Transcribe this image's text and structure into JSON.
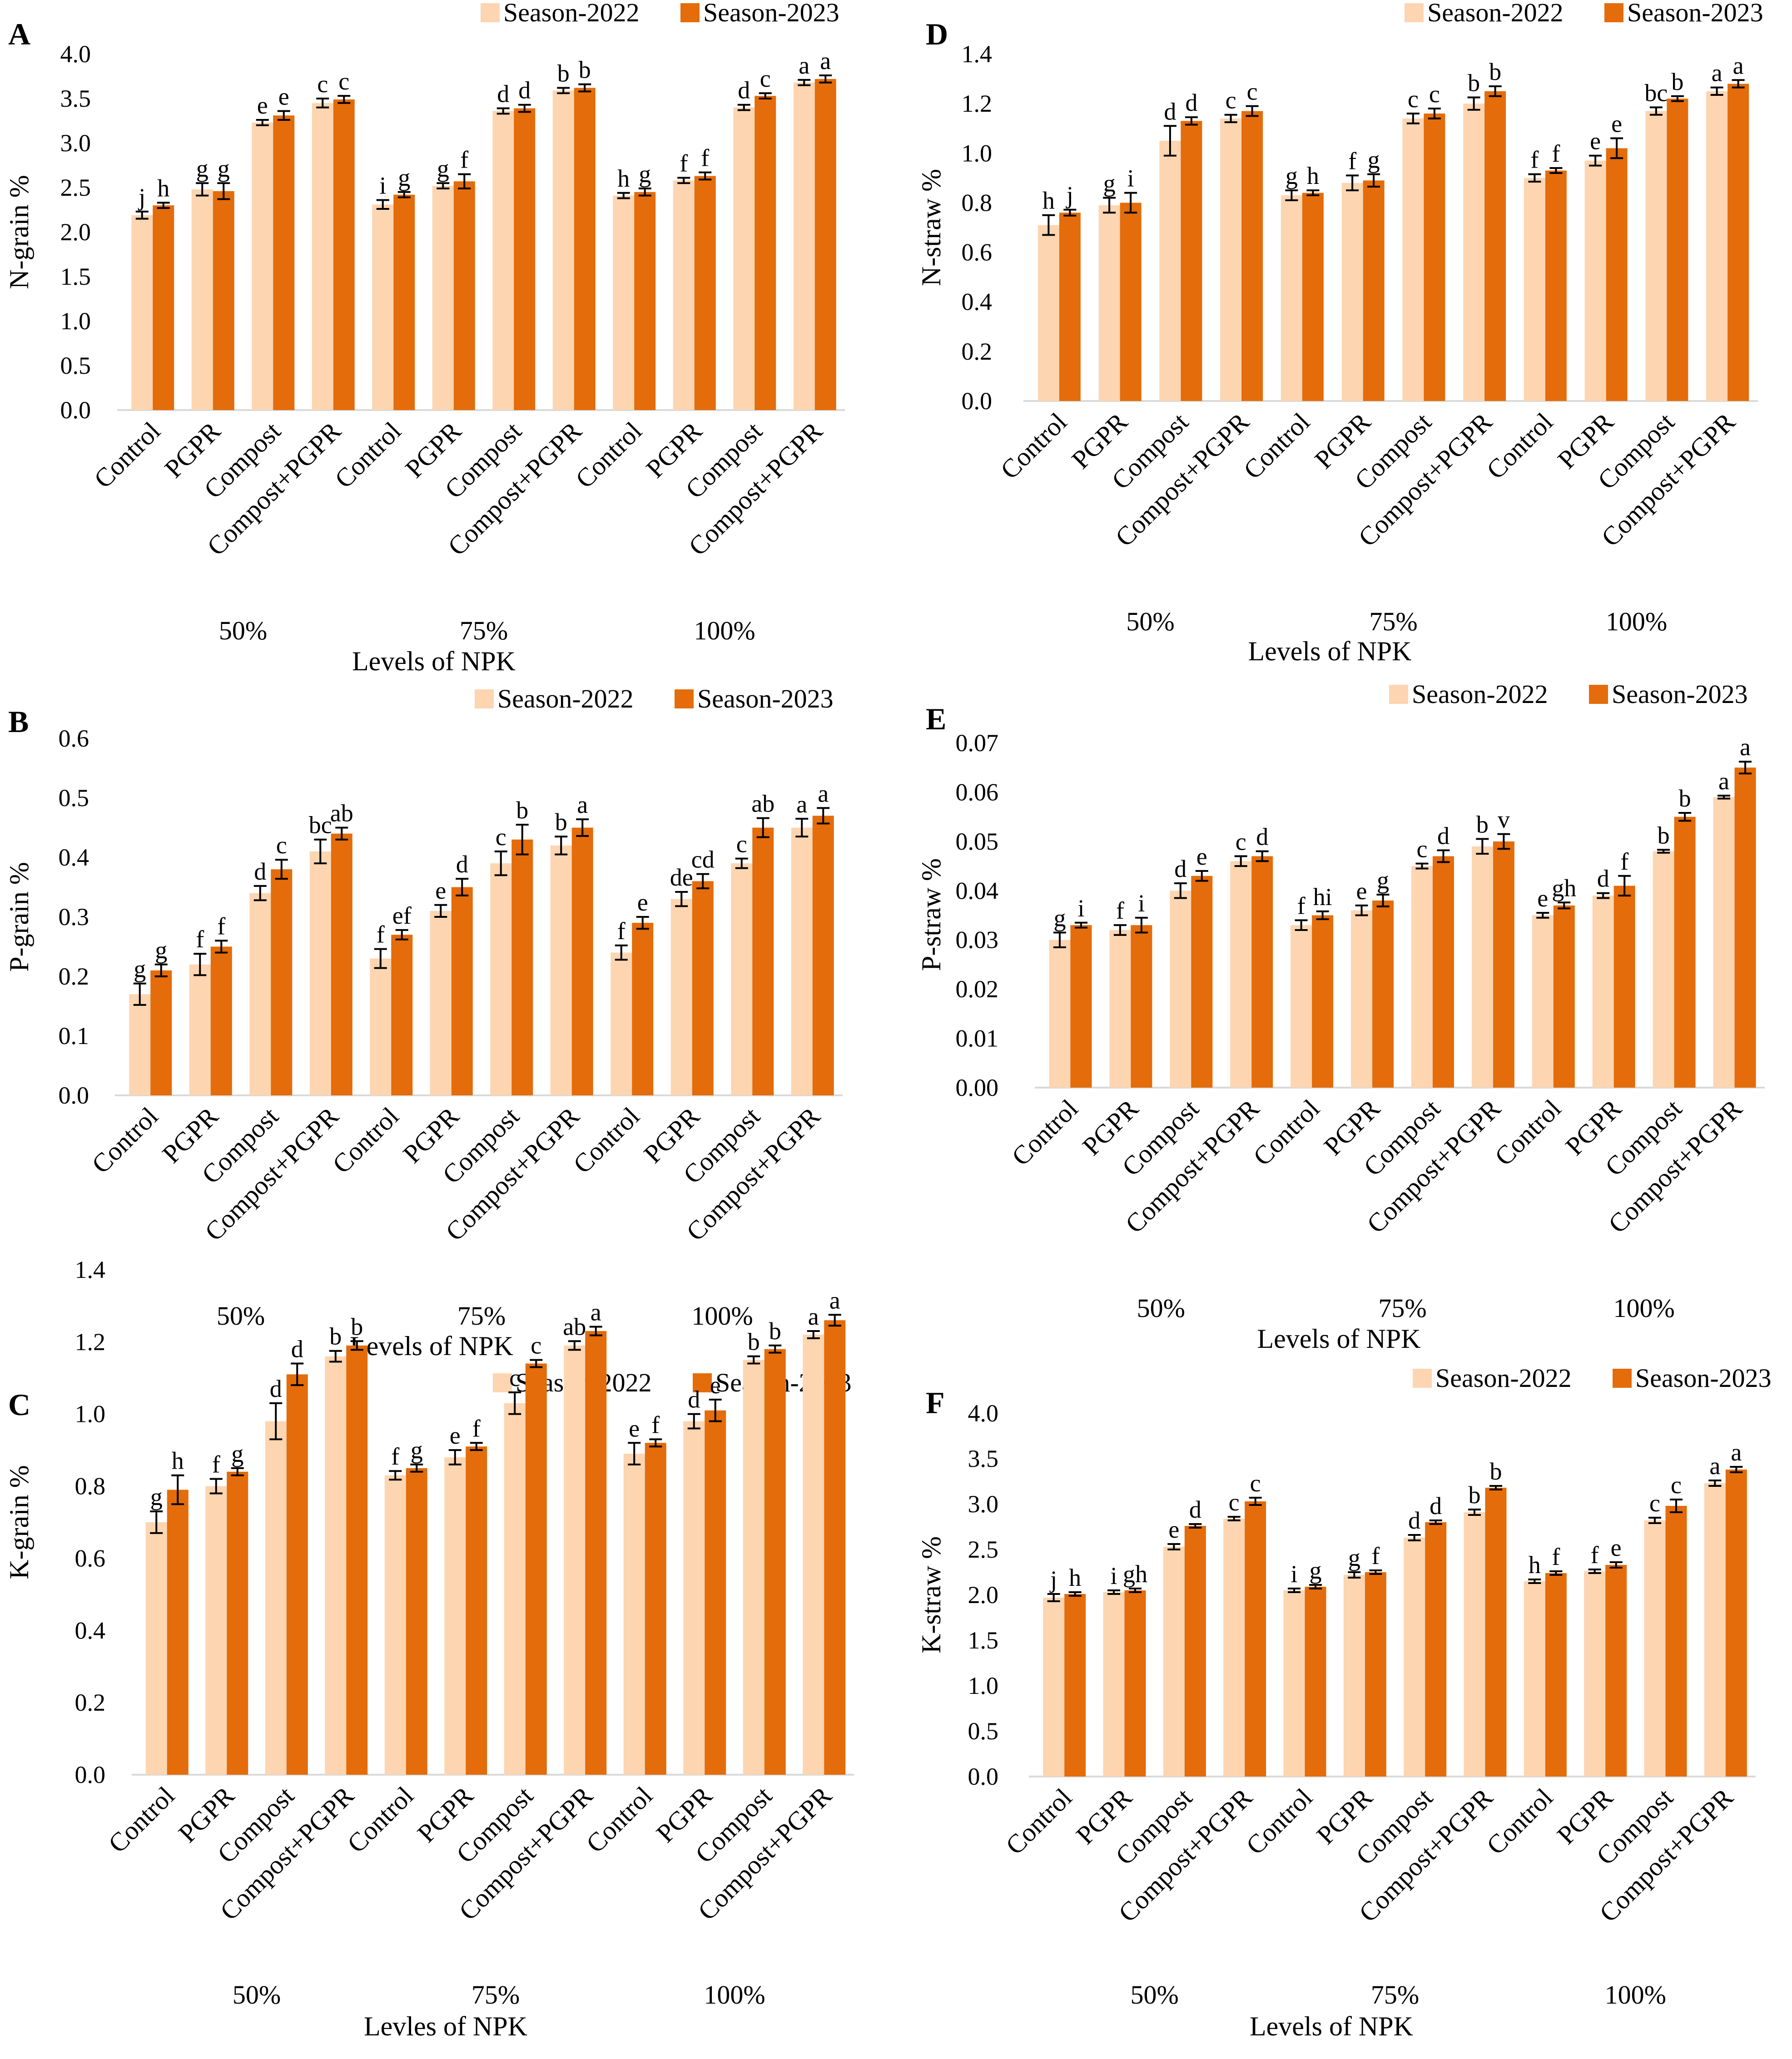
{
  "colors": {
    "season_2022": "#FDD5B1",
    "season_2023": "#E46C0A",
    "axis": "#D9D9D9",
    "error_bar": "#000000"
  },
  "legend": [
    "Season-2022",
    "Season-2023"
  ],
  "chart_data": [
    {
      "panel": "A",
      "type": "bar",
      "ylabel": "N-grain %",
      "xlabel": "Levels of NPK",
      "ylim": [
        0,
        4.0
      ],
      "yticks": [
        "0.0",
        "0.5",
        "1.0",
        "1.5",
        "2.0",
        "2.5",
        "3.0",
        "3.5",
        "4.0"
      ],
      "categories": [
        "Control",
        "PGPR",
        "Compost",
        "Compost+PGPR",
        "Control",
        "PGPR",
        "Compost",
        "Compost+PGPR",
        "Control",
        "PGPR",
        "Compost",
        "Compost+PGPR"
      ],
      "groups": [
        "50%",
        "75%",
        "100%"
      ],
      "series": [
        {
          "name": "Season-2022",
          "values": [
            2.19,
            2.48,
            3.23,
            3.45,
            2.31,
            2.52,
            3.36,
            3.59,
            2.41,
            2.58,
            3.4,
            3.68
          ],
          "errors": [
            0.04,
            0.07,
            0.03,
            0.05,
            0.05,
            0.03,
            0.03,
            0.03,
            0.03,
            0.03,
            0.03,
            0.03
          ],
          "letters": [
            "j",
            "g",
            "e",
            "c",
            "i",
            "g",
            "d",
            "b",
            "h",
            "f",
            "d",
            "a"
          ]
        },
        {
          "name": "Season-2023",
          "values": [
            2.3,
            2.46,
            3.31,
            3.49,
            2.42,
            2.57,
            3.39,
            3.62,
            2.45,
            2.63,
            3.53,
            3.72
          ],
          "errors": [
            0.03,
            0.09,
            0.05,
            0.04,
            0.03,
            0.08,
            0.04,
            0.04,
            0.04,
            0.04,
            0.03,
            0.04
          ],
          "letters": [
            "h",
            "g",
            "e",
            "c",
            "g",
            "f",
            "d",
            "b",
            "g",
            "f",
            "c",
            "a"
          ]
        }
      ]
    },
    {
      "panel": "B",
      "type": "bar",
      "ylabel": "P-grain %",
      "xlabel": "Levels of NPK",
      "ylim": [
        0,
        0.6
      ],
      "yticks": [
        "0.0",
        "0.1",
        "0.2",
        "0.3",
        "0.4",
        "0.5",
        "0.6"
      ],
      "categories": [
        "Control",
        "PGPR",
        "Compost",
        "Compost+PGPR",
        "Control",
        "PGPR",
        "Compost",
        "Compost+PGPR",
        "Control",
        "PGPR",
        "Compost",
        "Compost+PGPR"
      ],
      "groups": [
        "50%",
        "75%",
        "100%"
      ],
      "series": [
        {
          "name": "Season-2022",
          "values": [
            0.17,
            0.22,
            0.34,
            0.41,
            0.23,
            0.31,
            0.39,
            0.42,
            0.24,
            0.33,
            0.39,
            0.45
          ],
          "errors": [
            0.018,
            0.018,
            0.012,
            0.02,
            0.016,
            0.01,
            0.02,
            0.015,
            0.012,
            0.012,
            0.008,
            0.015
          ],
          "letters": [
            "g",
            "f",
            "d",
            "bc",
            "f",
            "e",
            "c",
            "b",
            "f",
            "de",
            "c",
            "a"
          ]
        },
        {
          "name": "Season-2023",
          "values": [
            0.21,
            0.25,
            0.38,
            0.44,
            0.27,
            0.35,
            0.43,
            0.45,
            0.29,
            0.36,
            0.45,
            0.47
          ],
          "errors": [
            0.01,
            0.01,
            0.016,
            0.01,
            0.008,
            0.014,
            0.025,
            0.014,
            0.01,
            0.012,
            0.016,
            0.013
          ],
          "letters": [
            "g",
            "f",
            "c",
            "ab",
            "ef",
            "d",
            "b",
            "a",
            "e",
            "cd",
            "ab",
            "a"
          ]
        }
      ]
    },
    {
      "panel": "C",
      "type": "bar",
      "ylabel": "K-grain %",
      "xlabel": "Levles of NPK",
      "ylim": [
        0,
        1.4
      ],
      "yticks": [
        "0.0",
        "0.2",
        "0.4",
        "0.6",
        "0.8",
        "1.0",
        "1.2",
        "1.4"
      ],
      "categories": [
        "Control",
        "PGPR",
        "Compost",
        "Compost+PGPR",
        "Control",
        "PGPR",
        "Compost",
        "Compost+PGPR",
        "Control",
        "PGPR",
        "Compost",
        "Compost+PGPR"
      ],
      "groups": [
        "50%",
        "75%",
        "100%"
      ],
      "series": [
        {
          "name": "Season-2022",
          "values": [
            0.7,
            0.8,
            0.98,
            1.16,
            0.83,
            0.88,
            1.03,
            1.19,
            0.89,
            0.98,
            1.15,
            1.22
          ],
          "errors": [
            0.03,
            0.02,
            0.05,
            0.015,
            0.012,
            0.02,
            0.03,
            0.012,
            0.03,
            0.02,
            0.01,
            0.01
          ],
          "letters": [
            "g",
            "f",
            "d",
            "b",
            "f",
            "e",
            "c",
            "ab",
            "e",
            "d",
            "b",
            "a"
          ]
        },
        {
          "name": "Season-2023",
          "values": [
            0.79,
            0.84,
            1.11,
            1.19,
            0.85,
            0.91,
            1.14,
            1.23,
            0.92,
            1.01,
            1.18,
            1.26
          ],
          "errors": [
            0.04,
            0.01,
            0.03,
            0.012,
            0.01,
            0.01,
            0.01,
            0.012,
            0.01,
            0.03,
            0.01,
            0.015
          ],
          "letters": [
            "h",
            "g",
            "d",
            "b",
            "g",
            "f",
            "c",
            "a",
            "f",
            "e",
            "b",
            "a"
          ]
        }
      ]
    },
    {
      "panel": "D",
      "type": "bar",
      "ylabel": "N-straw %",
      "xlabel": "Levels of NPK",
      "ylim": [
        0,
        1.4
      ],
      "yticks": [
        "0.0",
        "0.2",
        "0.4",
        "0.6",
        "0.8",
        "1.0",
        "1.2",
        "1.4"
      ],
      "categories": [
        "Control",
        "PGPR",
        "Compost",
        "Compost+PGPR",
        "Control",
        "PGPR",
        "Compost",
        "Compost+PGPR",
        "Control",
        "PGPR",
        "Compost",
        "Compost+PGPR"
      ],
      "groups": [
        "50%",
        "75%",
        "100%"
      ],
      "series": [
        {
          "name": "Season-2022",
          "values": [
            0.71,
            0.79,
            1.05,
            1.14,
            0.83,
            0.88,
            1.14,
            1.2,
            0.9,
            0.97,
            1.17,
            1.25
          ],
          "errors": [
            0.04,
            0.03,
            0.06,
            0.015,
            0.02,
            0.03,
            0.02,
            0.025,
            0.015,
            0.02,
            0.015,
            0.015
          ],
          "letters": [
            "h",
            "g",
            "d",
            "c",
            "g",
            "f",
            "c",
            "b",
            "f",
            "e",
            "bc",
            "a"
          ]
        },
        {
          "name": "Season-2023",
          "values": [
            0.76,
            0.8,
            1.13,
            1.17,
            0.84,
            0.89,
            1.16,
            1.25,
            0.93,
            1.02,
            1.22,
            1.28
          ],
          "errors": [
            0.012,
            0.04,
            0.015,
            0.02,
            0.01,
            0.025,
            0.02,
            0.02,
            0.01,
            0.04,
            0.01,
            0.015
          ],
          "letters": [
            "j",
            "i",
            "d",
            "c",
            "h",
            "g",
            "c",
            "b",
            "f",
            "e",
            "b",
            "a"
          ]
        }
      ]
    },
    {
      "panel": "E",
      "type": "bar",
      "ylabel": "P-straw %",
      "xlabel": "Levels of NPK",
      "ylim": [
        0,
        0.07
      ],
      "yticks": [
        "0.00",
        "0.01",
        "0.02",
        "0.03",
        "0.04",
        "0.05",
        "0.06",
        "0.07"
      ],
      "categories": [
        "Control",
        "PGPR",
        "Compost",
        "Compost+PGPR",
        "Control",
        "PGPR",
        "Compost",
        "Compost+PGPR",
        "Control",
        "PGPR",
        "Compost",
        "Compost+PGPR"
      ],
      "groups": [
        "50%",
        "75%",
        "100%"
      ],
      "series": [
        {
          "name": "Season-2022",
          "values": [
            0.03,
            0.032,
            0.04,
            0.046,
            0.033,
            0.036,
            0.045,
            0.049,
            0.035,
            0.039,
            0.048,
            0.059
          ],
          "errors": [
            0.0015,
            0.001,
            0.0015,
            0.001,
            0.001,
            0.001,
            0.0005,
            0.0015,
            0.0005,
            0.0005,
            0.0003,
            0.0003
          ],
          "letters": [
            "g",
            "f",
            "d",
            "c",
            "f",
            "e",
            "c",
            "b",
            "e",
            "d",
            "b",
            "a"
          ]
        },
        {
          "name": "Season-2023",
          "values": [
            0.033,
            0.033,
            0.043,
            0.047,
            0.035,
            0.038,
            0.047,
            0.05,
            0.037,
            0.041,
            0.055,
            0.065
          ],
          "errors": [
            0.0005,
            0.0015,
            0.001,
            0.001,
            0.0008,
            0.0012,
            0.0012,
            0.0015,
            0.0006,
            0.002,
            0.0008,
            0.0012
          ],
          "letters": [
            "i",
            "i",
            "e",
            "d",
            "hi",
            "g",
            "d",
            "v",
            "gh",
            "f",
            "b",
            "a"
          ]
        }
      ]
    },
    {
      "panel": "F",
      "type": "bar",
      "ylabel": "K-straw %",
      "xlabel": "Levels of NPK",
      "ylim": [
        0,
        4.0
      ],
      "yticks": [
        "0.0",
        "0.5",
        "1.0",
        "1.5",
        "2.0",
        "2.5",
        "3.0",
        "3.5",
        "4.0"
      ],
      "categories": [
        "Control",
        "PGPR",
        "Compost",
        "Compost+PGPR",
        "Control",
        "PGPR",
        "Compost",
        "Compost+PGPR",
        "Control",
        "PGPR",
        "Compost",
        "Compost+PGPR"
      ],
      "groups": [
        "50%",
        "75%",
        "100%"
      ],
      "series": [
        {
          "name": "Season-2022",
          "values": [
            1.97,
            2.03,
            2.53,
            2.84,
            2.05,
            2.22,
            2.63,
            2.91,
            2.15,
            2.26,
            2.82,
            3.23
          ],
          "errors": [
            0.04,
            0.02,
            0.03,
            0.02,
            0.02,
            0.03,
            0.03,
            0.03,
            0.02,
            0.02,
            0.03,
            0.03
          ],
          "letters": [
            "j",
            "i",
            "e",
            "c",
            "i",
            "g",
            "d",
            "b",
            "h",
            "f",
            "c",
            "a"
          ]
        },
        {
          "name": "Season-2023",
          "values": [
            2.01,
            2.05,
            2.76,
            3.03,
            2.09,
            2.25,
            2.8,
            3.18,
            2.24,
            2.33,
            2.98,
            3.38
          ],
          "errors": [
            0.02,
            0.02,
            0.02,
            0.04,
            0.02,
            0.02,
            0.02,
            0.02,
            0.02,
            0.03,
            0.07,
            0.03
          ],
          "letters": [
            "h",
            "gh",
            "d",
            "c",
            "g",
            "f",
            "d",
            "b",
            "f",
            "e",
            "c",
            "a"
          ]
        }
      ]
    }
  ]
}
